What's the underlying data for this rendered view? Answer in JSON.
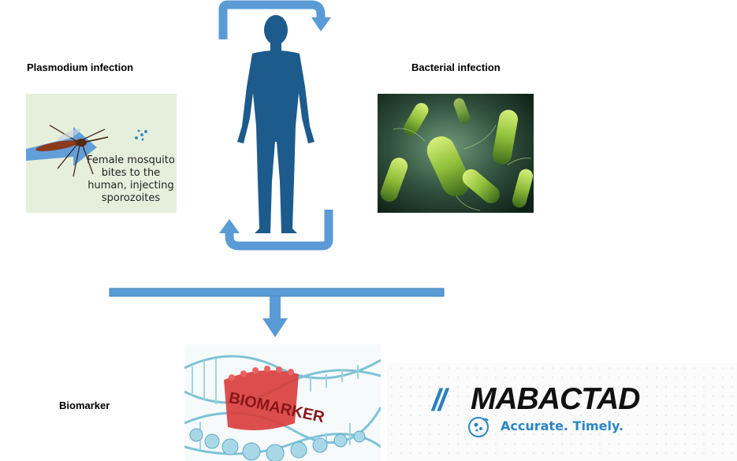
{
  "labels": {
    "plasmodium": "Plasmodium infection",
    "bacterial": "Bacterial infection",
    "biomarker": "Biomarker"
  },
  "mosquito_panel": {
    "caption_lines": [
      "Female mosquito",
      "bites to the",
      "human, injecting",
      "sporozoites"
    ]
  },
  "dna_panel": {
    "overlay_text": "BIOMARKER"
  },
  "logo": {
    "slashes": "//",
    "name": "MABACTAD",
    "tagline": "Accurate. Timely."
  },
  "colors": {
    "arrow_blue": "#5b9bd5",
    "human_blue": "#1d5b8c",
    "logo_blue": "#2a7fbf",
    "background": "#ffffff"
  }
}
